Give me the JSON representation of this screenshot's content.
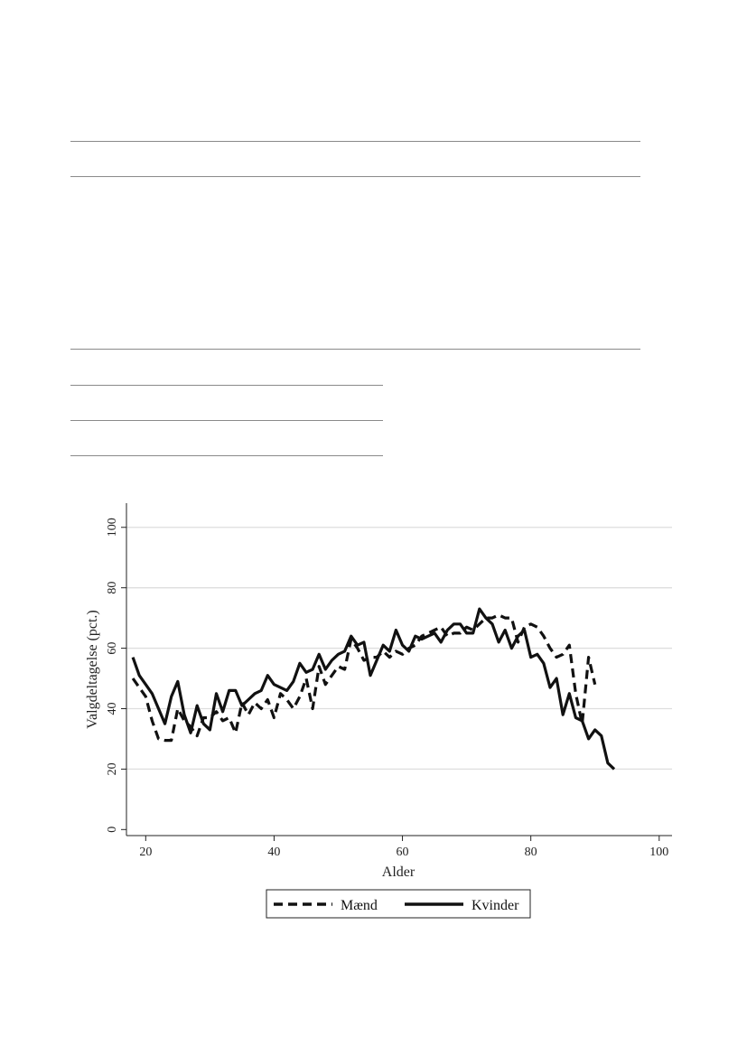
{
  "chart_data": {
    "type": "line",
    "title": "",
    "xlabel": "Alder",
    "ylabel": "Valgdeltagelse (pct.)",
    "xlim": [
      17,
      102
    ],
    "ylim": [
      -2,
      108
    ],
    "xticks": [
      20,
      40,
      60,
      80,
      100
    ],
    "yticks": [
      0,
      20,
      40,
      60,
      80,
      100
    ],
    "grid": "horizontal",
    "legend_position": "bottom",
    "series": [
      {
        "name": "Mænd",
        "style": "dashed",
        "color": "#111111",
        "x": [
          18,
          19,
          20,
          21,
          22,
          23,
          24,
          25,
          26,
          27,
          28,
          29,
          30,
          31,
          32,
          33,
          34,
          35,
          36,
          37,
          38,
          39,
          40,
          41,
          42,
          43,
          44,
          45,
          46,
          47,
          48,
          49,
          50,
          51,
          52,
          53,
          54,
          55,
          56,
          57,
          58,
          59,
          60,
          61,
          62,
          63,
          64,
          65,
          66,
          67,
          68,
          69,
          70,
          71,
          72,
          73,
          74,
          75,
          76,
          77,
          78,
          79,
          80,
          81,
          82,
          83,
          84,
          85,
          86,
          87,
          88,
          89,
          90
        ],
        "y": [
          50,
          47,
          44,
          36,
          30,
          29.5,
          29.5,
          40,
          36,
          34,
          31,
          37,
          37,
          39,
          36,
          37,
          32,
          42,
          38,
          42,
          40,
          43,
          37,
          45,
          43,
          40,
          44,
          50,
          40,
          54,
          48,
          51,
          54,
          53,
          63,
          60,
          56,
          57,
          57,
          59,
          57,
          59,
          58,
          60,
          61,
          64,
          65,
          66,
          67,
          64,
          65,
          65,
          67,
          66,
          68,
          70,
          70,
          71,
          70,
          70,
          62,
          67,
          68,
          67,
          64,
          60,
          57,
          58,
          61,
          45,
          35,
          57,
          48
        ]
      },
      {
        "name": "Kvinder",
        "style": "solid",
        "color": "#111111",
        "x": [
          18,
          19,
          20,
          21,
          22,
          23,
          24,
          25,
          26,
          27,
          28,
          29,
          30,
          31,
          32,
          33,
          34,
          35,
          36,
          37,
          38,
          39,
          40,
          41,
          42,
          43,
          44,
          45,
          46,
          47,
          48,
          49,
          50,
          51,
          52,
          53,
          54,
          55,
          56,
          57,
          58,
          59,
          60,
          61,
          62,
          63,
          64,
          65,
          66,
          67,
          68,
          69,
          70,
          71,
          72,
          73,
          74,
          75,
          76,
          77,
          78,
          79,
          80,
          81,
          82,
          83,
          84,
          85,
          86,
          87,
          88,
          89,
          90,
          91,
          92,
          93
        ],
        "y": [
          57,
          51,
          48,
          45,
          40,
          35,
          44,
          49,
          38,
          32,
          41,
          35,
          33,
          45,
          39,
          46,
          46,
          41,
          43,
          45,
          46,
          51,
          48,
          47,
          46,
          49,
          55,
          52,
          53,
          58,
          53,
          56,
          58,
          59,
          64,
          61,
          62,
          51,
          56,
          61,
          59,
          66,
          61,
          59,
          64,
          63,
          64,
          65,
          62,
          66,
          68,
          68,
          65,
          65,
          73,
          70,
          68,
          62,
          66,
          60,
          64,
          66,
          57,
          58,
          55,
          47,
          50,
          38,
          45,
          37,
          36,
          30,
          33,
          31,
          22,
          20
        ]
      }
    ]
  }
}
